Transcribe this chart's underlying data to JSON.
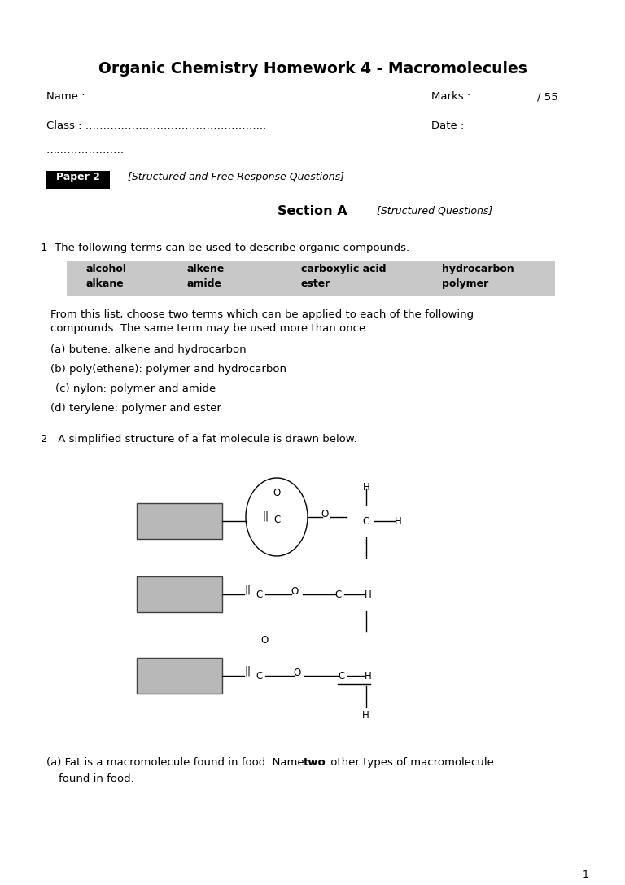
{
  "title": "Organic Chemistry Homework 4 - Macromolecules",
  "bg_color": "#ffffff",
  "text_color": "#000000",
  "page_width": 7.68,
  "page_height": 10.87,
  "table_bg": "#c8c8c8",
  "grey_rect": "#b8b8b8",
  "table_terms": [
    [
      "alcohol",
      "alkene",
      "carboxylic acid",
      "hydrocarbon"
    ],
    [
      "alkane",
      "amide",
      "ester",
      "polymer"
    ]
  ],
  "dots_name": "Name : …………………………………………….",
  "dots_class": "Class : …………………………………………...",
  "dots_extra": "…………………."
}
